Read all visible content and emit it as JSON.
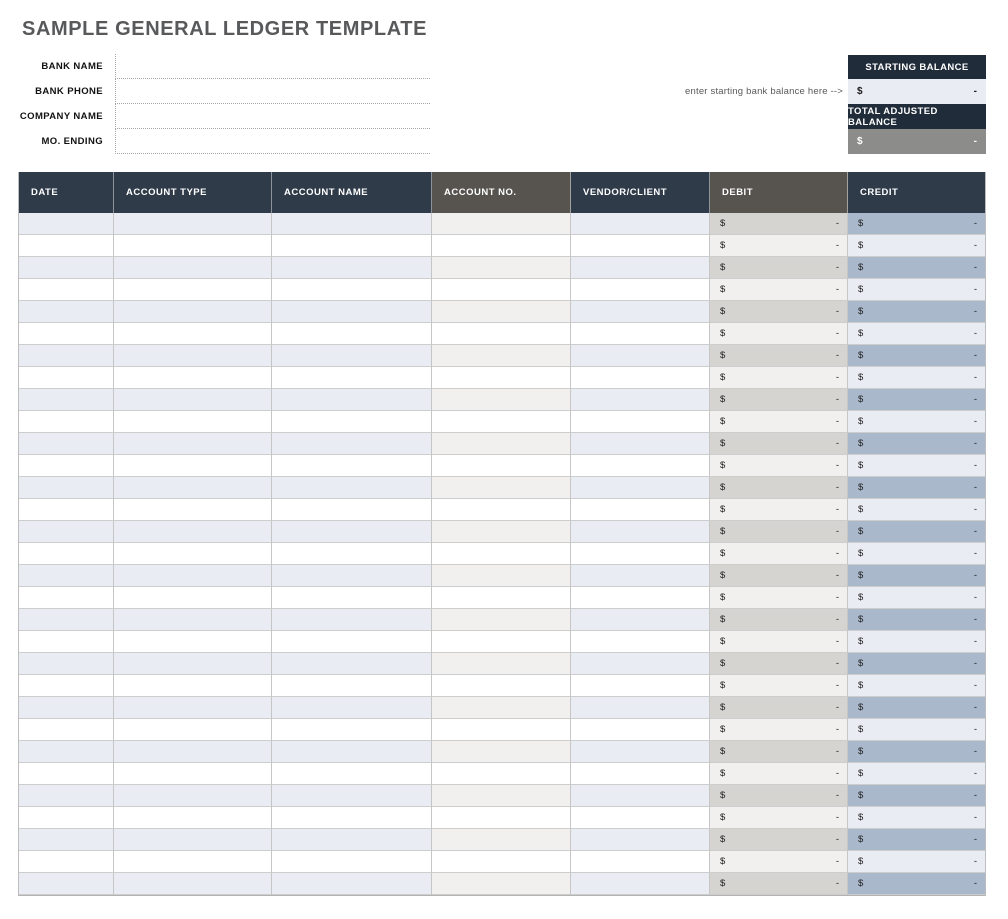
{
  "page_title": "SAMPLE GENERAL LEDGER TEMPLATE",
  "form": {
    "fields": [
      {
        "label": "BANK NAME",
        "value": ""
      },
      {
        "label": "BANK PHONE",
        "value": ""
      },
      {
        "label": "COMPANY NAME",
        "value": ""
      },
      {
        "label": "MO. ENDING",
        "value": ""
      }
    ]
  },
  "balance": {
    "note": "enter starting bank balance here -->",
    "starting": {
      "label": "STARTING BALANCE",
      "currency": "$",
      "amount": "-"
    },
    "total_adjusted": {
      "label": "TOTAL ADJUSTED BALANCE",
      "currency": "$",
      "amount": "-"
    }
  },
  "table": {
    "columns": [
      {
        "label": "DATE",
        "variant": "navy",
        "type": "text"
      },
      {
        "label": "ACCOUNT TYPE",
        "variant": "navy",
        "type": "text"
      },
      {
        "label": "ACCOUNT NAME",
        "variant": "navy",
        "type": "text"
      },
      {
        "label": "ACCOUNT NO.",
        "variant": "gray",
        "type": "text"
      },
      {
        "label": "VENDOR/CLIENT",
        "variant": "navy",
        "type": "text"
      },
      {
        "label": "DEBIT",
        "variant": "gray",
        "type": "money"
      },
      {
        "label": "CREDIT",
        "variant": "navy",
        "type": "money"
      }
    ],
    "row_count": 31,
    "money": {
      "currency": "$",
      "amount": "-"
    },
    "empty_value": ""
  },
  "colors": {
    "navy_header": "#2f3b49",
    "gray_header": "#57544f",
    "balance_header_navy": "#212c3a",
    "total_cell_gray": "#8c8c8b",
    "row_alt_blue": "#e9edf3",
    "row_alt_warm": "#f1f0ee",
    "debit_odd": "#d6d4d1",
    "debit_even": "#f1f0ee",
    "credit_odd": "#a9b8ca",
    "credit_even": "#e9edf3",
    "title_gray": "#58595b"
  }
}
